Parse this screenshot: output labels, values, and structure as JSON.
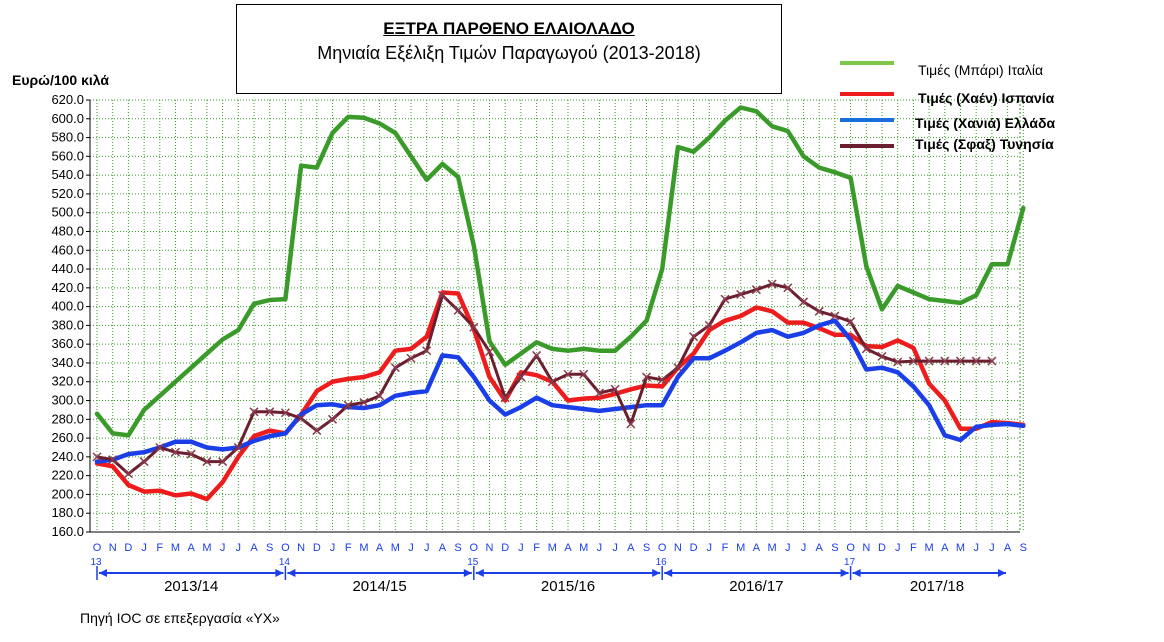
{
  "title": "ΕΞΤΡΑ ΠΑΡΘΕΝΟ ΕΛΑΙΟΛΑΔΟ",
  "subtitle": "Μηνιαία Εξέλιξη Τιμών Παραγωγού (2013-2018)",
  "source": "Πηγή IOC σε επεξεργασία «ΥΧ»",
  "chart_data": {
    "type": "line",
    "ylabel": "Ευρώ/100 κιλά",
    "ylim": [
      160,
      620
    ],
    "ytick_step": 20,
    "grid": true,
    "legend_position": "top-right",
    "x_month_letters": [
      "O",
      "N",
      "D",
      "J",
      "F",
      "M",
      "A",
      "M",
      "J",
      "J",
      "A",
      "S",
      "O",
      "N",
      "D",
      "J",
      "F",
      "M",
      "A",
      "M",
      "J",
      "J",
      "A",
      "S",
      "O",
      "N",
      "D",
      "J",
      "F",
      "M",
      "A",
      "M",
      "J",
      "J",
      "A",
      "S",
      "O",
      "N",
      "D",
      "J",
      "F",
      "M",
      "A",
      "M",
      "J",
      "J",
      "A",
      "S",
      "O",
      "N",
      "D",
      "J",
      "F",
      "M",
      "A",
      "M",
      "J",
      "J",
      "A",
      "S"
    ],
    "year_markers": [
      {
        "index": 0,
        "label": "13"
      },
      {
        "index": 12,
        "label": "14"
      },
      {
        "index": 24,
        "label": "15"
      },
      {
        "index": 36,
        "label": "16"
      },
      {
        "index": 48,
        "label": "17"
      }
    ],
    "seasons": [
      {
        "label": "2013/14",
        "start": 0,
        "end": 12
      },
      {
        "label": "2014/15",
        "start": 12,
        "end": 24
      },
      {
        "label": "2015/16",
        "start": 24,
        "end": 36
      },
      {
        "label": "2016/17",
        "start": 36,
        "end": 48
      },
      {
        "label": "2017/18",
        "start": 48,
        "end": 59
      }
    ],
    "series": [
      {
        "name": "Τιμές (Μπάρι) Ιταλία",
        "color": "#3a9a2a",
        "marker": "none",
        "values": [
          286,
          265,
          263,
          290,
          305,
          320,
          335,
          350,
          365,
          375,
          403,
          407,
          408,
          550,
          548,
          585,
          602,
          601,
          595,
          585,
          560,
          535,
          552,
          538,
          465,
          363,
          338,
          350,
          362,
          355,
          353,
          355,
          353,
          353,
          368,
          385,
          440,
          570,
          565,
          580,
          598,
          612,
          608,
          592,
          587,
          560,
          548,
          543,
          537,
          443,
          397,
          422,
          415,
          408,
          406,
          404,
          412,
          445,
          445,
          505
        ]
      },
      {
        "name": "Τιμές (Χαέν)  Ισπανία",
        "color": "#ee1c1c",
        "marker": "none",
        "values": [
          233,
          230,
          210,
          203,
          204,
          199,
          201,
          195,
          213,
          240,
          262,
          268,
          265,
          285,
          310,
          320,
          323,
          325,
          330,
          353,
          355,
          368,
          415,
          414,
          376,
          325,
          300,
          330,
          327,
          320,
          300,
          302,
          303,
          307,
          312,
          316,
          315,
          335,
          350,
          375,
          385,
          390,
          399,
          395,
          383,
          383,
          377,
          370,
          370,
          358,
          357,
          364,
          356,
          318,
          300,
          270,
          270,
          277,
          276,
          274
        ]
      },
      {
        "name": "Τιμές (Χανιά) Ελλάδα",
        "color": "#1a3ee8",
        "marker": "none",
        "values": [
          235,
          237,
          243,
          245,
          250,
          256,
          256,
          250,
          248,
          250,
          257,
          262,
          265,
          285,
          295,
          296,
          293,
          292,
          295,
          305,
          308,
          310,
          348,
          346,
          325,
          300,
          285,
          293,
          303,
          295,
          293,
          291,
          289,
          291,
          293,
          295,
          295,
          325,
          345,
          345,
          353,
          362,
          372,
          375,
          368,
          372,
          380,
          385,
          365,
          333,
          335,
          330,
          315,
          295,
          263,
          258,
          272,
          274,
          275,
          273
        ]
      },
      {
        "name": "Τιμές (Σφαξ)  Τυνησία",
        "color": "#6b1f2e",
        "marker": "x",
        "values": [
          240,
          237,
          222,
          235,
          250,
          245,
          243,
          235,
          235,
          250,
          288,
          288,
          287,
          281,
          268,
          280,
          295,
          298,
          305,
          335,
          345,
          353,
          412,
          396,
          378,
          352,
          303,
          325,
          348,
          320,
          328,
          328,
          308,
          312,
          275,
          325,
          322,
          335,
          368,
          380,
          408,
          413,
          418,
          424,
          420,
          405,
          395,
          390,
          384,
          355,
          347,
          341,
          342,
          342,
          342,
          342,
          342,
          342
        ]
      }
    ]
  }
}
